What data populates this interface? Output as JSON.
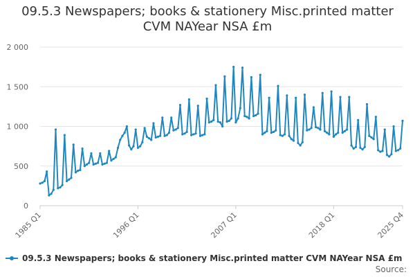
{
  "title_lines": [
    "09.5.3 Newspapers; books & stationery Misc.printed matter",
    "CVM NAYear NSA £m"
  ],
  "legend_label": "09.5.3 Newspapers; books & stationery Misc.printed matter CVM NAYear NSA £m",
  "source_label": "Source:",
  "colors": {
    "series": "#1f87c0",
    "grid": "#e6e6e6",
    "axis": "#cccccc",
    "text": "#333333"
  },
  "chart_data": {
    "type": "line",
    "title": "09.5.3 Newspapers; books & stationery Misc.printed matter CVM NAYear NSA £m",
    "xlabel": "",
    "ylabel": "",
    "ylim": [
      0,
      2000
    ],
    "y_ticks": [
      0,
      500,
      1000,
      1500,
      2000
    ],
    "y_tick_labels": [
      "0",
      "500",
      "1 000",
      "1 500",
      "2 000"
    ],
    "x_tick_labels": [
      "1985 Q1",
      "1996 Q1",
      "2007 Q1",
      "2018 Q1",
      "2025 Q4"
    ],
    "x_tick_index": [
      0,
      44,
      88,
      132,
      163
    ],
    "grid": true,
    "legend_position": "bottom",
    "series": [
      {
        "name": "09.5.3 Newspapers; books & stationery Misc.printed matter CVM NAYear NSA £m",
        "x_start": "1985 Q1",
        "x_end": "2025 Q4",
        "values": [
          280,
          290,
          310,
          430,
          130,
          150,
          200,
          960,
          220,
          230,
          260,
          890,
          310,
          330,
          350,
          770,
          420,
          440,
          450,
          720,
          500,
          520,
          540,
          660,
          520,
          530,
          540,
          660,
          520,
          530,
          540,
          690,
          570,
          590,
          610,
          730,
          830,
          880,
          920,
          1000,
          760,
          710,
          750,
          960,
          730,
          750,
          800,
          980,
          870,
          850,
          830,
          1040,
          860,
          870,
          880,
          1110,
          880,
          890,
          920,
          1110,
          950,
          960,
          980,
          1270,
          900,
          910,
          930,
          1340,
          890,
          900,
          910,
          1260,
          880,
          890,
          900,
          1350,
          1050,
          1060,
          1080,
          1520,
          1060,
          1050,
          1000,
          1630,
          1060,
          1070,
          1100,
          1750,
          1050,
          1100,
          1230,
          1740,
          1130,
          1120,
          1100,
          1620,
          1130,
          1140,
          1160,
          1650,
          900,
          920,
          940,
          1360,
          920,
          930,
          950,
          1510,
          890,
          880,
          900,
          1390,
          880,
          840,
          820,
          1360,
          790,
          760,
          800,
          1400,
          950,
          960,
          980,
          1240,
          990,
          980,
          960,
          1420,
          940,
          920,
          900,
          1440,
          870,
          900,
          920,
          1370,
          920,
          940,
          960,
          1370,
          760,
          720,
          740,
          1080,
          730,
          710,
          740,
          1280,
          880,
          860,
          840,
          1120,
          700,
          680,
          690,
          960,
          640,
          620,
          650,
          1000,
          690,
          700,
          720,
          1070
        ]
      }
    ]
  }
}
